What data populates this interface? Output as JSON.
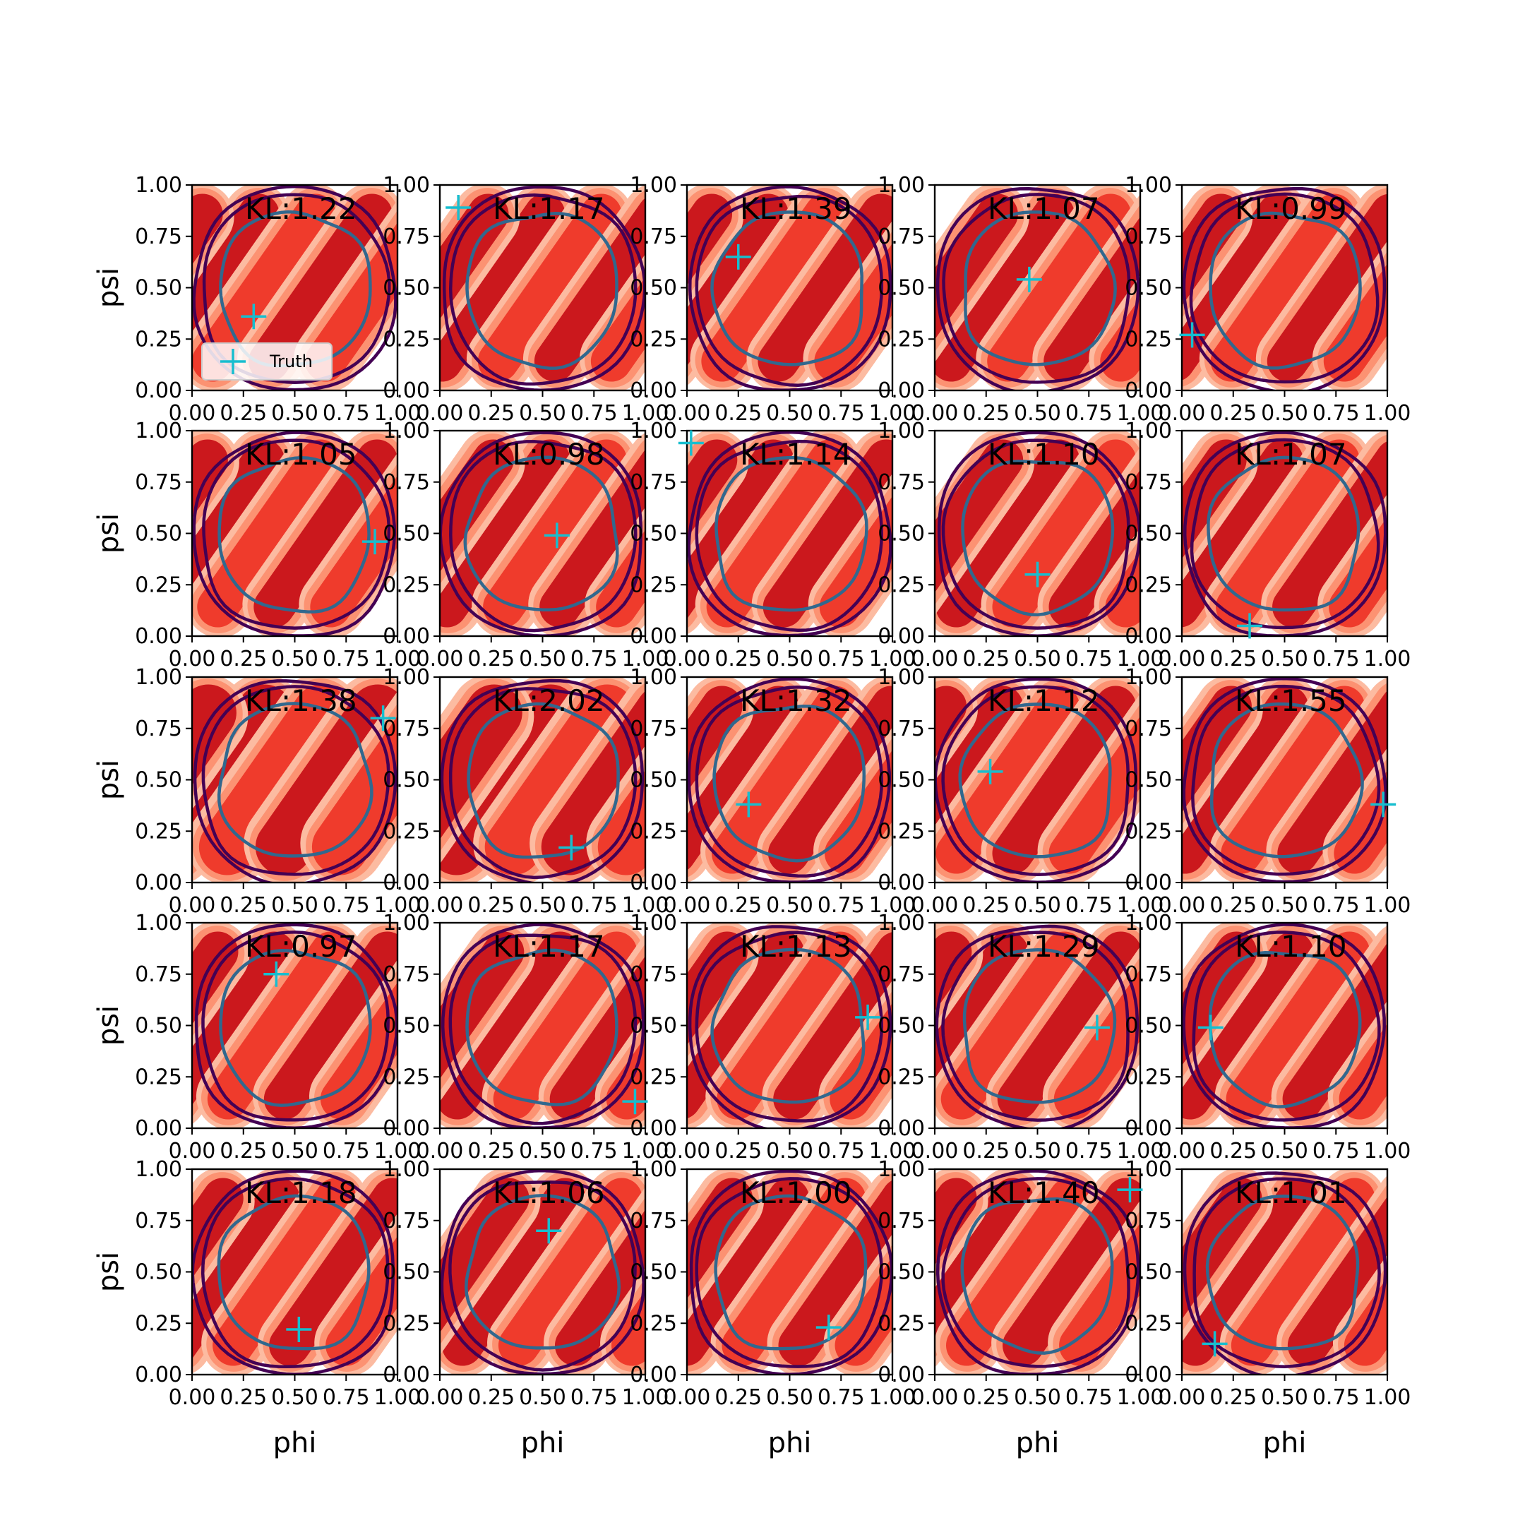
{
  "chart_data": {
    "type": "grid-of-density-contour-plots",
    "rows": 5,
    "cols": 5,
    "xlabel": "phi",
    "ylabel": "psi",
    "xlim": [
      0,
      1
    ],
    "ylim": [
      0,
      1
    ],
    "ticks": [
      0.0,
      0.25,
      0.5,
      0.75,
      1.0
    ],
    "tick_labels": [
      "0.00",
      "0.25",
      "0.50",
      "0.75",
      "1.00"
    ],
    "legend": {
      "label": "Truth",
      "marker": "+",
      "placement": "lower-left of first panel"
    },
    "colors": {
      "density_dark": "#cb181d",
      "density_mid": "#ef3b2c",
      "density_light": "#fc9272",
      "density_pale": "#fcbba1",
      "contour_inner": "#31688e",
      "contour_outer": "#440154",
      "truth_marker": "#17becf"
    },
    "panels": [
      {
        "kl": "KL:1.22",
        "truth": [
          0.3,
          0.36
        ]
      },
      {
        "kl": "KL:1.17",
        "truth": [
          0.09,
          0.89
        ]
      },
      {
        "kl": "KL:1.39",
        "truth": [
          0.25,
          0.65
        ]
      },
      {
        "kl": "KL:1.07",
        "truth": [
          0.46,
          0.54
        ]
      },
      {
        "kl": "KL:0.99",
        "truth": [
          0.05,
          0.27
        ]
      },
      {
        "kl": "KL:1.05",
        "truth": [
          0.89,
          0.46
        ]
      },
      {
        "kl": "KL:0.98",
        "truth": [
          0.57,
          0.49
        ]
      },
      {
        "kl": "KL:1.14",
        "truth": [
          0.02,
          0.94
        ]
      },
      {
        "kl": "KL:1.10",
        "truth": [
          0.5,
          0.3
        ]
      },
      {
        "kl": "KL:1.07",
        "truth": [
          0.33,
          0.05
        ]
      },
      {
        "kl": "KL:1.38",
        "truth": [
          0.93,
          0.8
        ]
      },
      {
        "kl": "KL:2.02",
        "truth": [
          0.64,
          0.17
        ]
      },
      {
        "kl": "KL:1.32",
        "truth": [
          0.3,
          0.38
        ]
      },
      {
        "kl": "KL:1.12",
        "truth": [
          0.27,
          0.54
        ]
      },
      {
        "kl": "KL:1.55",
        "truth": [
          0.98,
          0.38
        ]
      },
      {
        "kl": "KL:0.97",
        "truth": [
          0.41,
          0.75
        ]
      },
      {
        "kl": "KL:1.17",
        "truth": [
          0.95,
          0.13
        ]
      },
      {
        "kl": "KL:1.13",
        "truth": [
          0.88,
          0.54
        ]
      },
      {
        "kl": "KL:1.29",
        "truth": [
          0.79,
          0.49
        ]
      },
      {
        "kl": "KL:1.10",
        "truth": [
          0.14,
          0.49
        ]
      },
      {
        "kl": "KL:1.18",
        "truth": [
          0.52,
          0.22
        ]
      },
      {
        "kl": "KL:1.06",
        "truth": [
          0.53,
          0.7
        ]
      },
      {
        "kl": "KL:1.00",
        "truth": [
          0.69,
          0.23
        ]
      },
      {
        "kl": "KL:1.40",
        "truth": [
          0.95,
          0.9
        ]
      },
      {
        "kl": "KL:1.01",
        "truth": [
          0.16,
          0.15
        ]
      }
    ]
  }
}
